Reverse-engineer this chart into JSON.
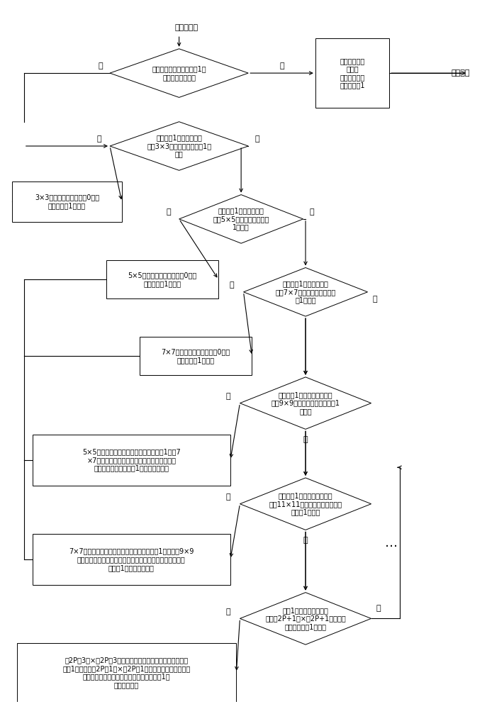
{
  "bg_color": "#ffffff",
  "top_label": "二均值图像",
  "mask_label": "掩模图像",
  "d1_text": "逐行逐列对扫描像素值为1的\n像素位置是否完成",
  "bmask_text": "各圆周内部封\n闭区间\n所有像素的像\n素值设置为1",
  "d2_text": "像素值为1的为中心点，\n周围3×3区域内是否存在为1的\n像素",
  "b3_text": "3×3区域内像素值全置为0，移\n至下一值为1的像素",
  "d3_text": "像素值为1的为中心点，\n周围5×5区域内是否存在为\n1的像素",
  "b5_text": "5×5区域内的像素值全置为0，移\n至下一值为1的像素",
  "d4_text": "像素值为1的为中心点，\n周围7×7像素区域内是否存在\n为1的像素",
  "b7_text": "7×7区域内的像素值全置为0，移\n至下一值为1的像素",
  "d5_text": "像素值为1的像素为中心点，\n周围9×9像素区域内是否存在为1\n的像素",
  "b9_text": "5×5区域内离中心点距离最远的像素值为1的到7\n×7区域内中心点的距离为半径做圆，圆周上所\n有像素的像素值设置为1，形成封闭区间",
  "d6_text": "像素值为1的像素为中心点，\n周围11×11像素区域内是否存在像\n素值为1的像素",
  "b11_text": "7×7像素区域内离中心点距离最远的像素值为1的像素到9×9\n区域内中心点的距离为半径做圆，圆周上所有像素的像素值\n设置为1，形成封闭区间",
  "d7_text": "值为1的像素为中心点，\n周围（2P+1）×（2P+1）区域内\n是否存在值为1的像素",
  "b2p_text": "（2P－3）×（2P－3）像素区域内离中心点距离最远的像素\n值为1的像素到（2P－1）×（2P－1）区域内中心点的距离为\n半径做圆，圆周上所有像素的像素值设置为1，\n形成封闭区间",
  "yes": "是",
  "no": "否",
  "ellipsis": "…"
}
